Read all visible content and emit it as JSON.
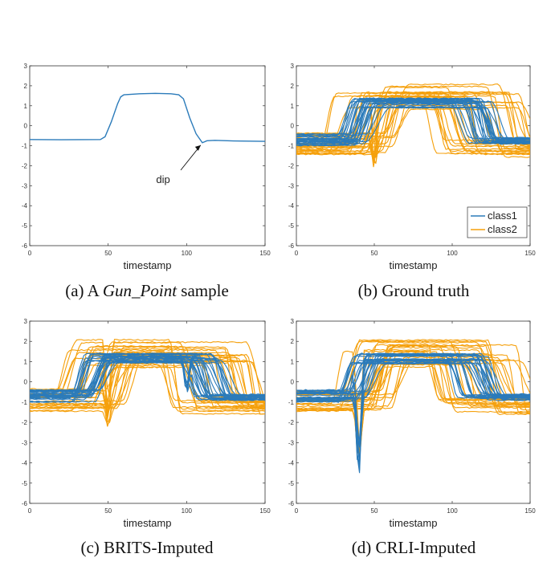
{
  "colors": {
    "class1": "#2b7bba",
    "class2": "#f5a00c",
    "axis": "#333333"
  },
  "chart_data": [
    {
      "type": "line",
      "xlabel": "timestamp",
      "xlim": [
        0,
        150
      ],
      "ylim": [
        -6,
        3
      ],
      "xticks": [
        "0",
        "50",
        "100",
        "150"
      ],
      "yticks": [
        "3",
        "2",
        "1",
        "0",
        "-1",
        "-2",
        "-3",
        "-4",
        "-5",
        "-6"
      ],
      "caption_prefix": "(a)  A ",
      "caption_em": "Gun_Point",
      "caption_suffix": " sample",
      "annotation": {
        "text": "dip",
        "target": [
          110,
          -0.85
        ],
        "label_at": [
          85,
          -2.7
        ]
      },
      "series": [
        {
          "x": [
            0,
            20,
            45,
            48,
            52,
            56,
            58,
            60,
            70,
            80,
            90,
            95,
            98,
            102,
            106,
            110,
            113,
            118,
            130,
            150
          ],
          "y": [
            -0.69,
            -0.7,
            -0.69,
            -0.55,
            0.2,
            1.1,
            1.45,
            1.55,
            1.6,
            1.62,
            1.6,
            1.55,
            1.35,
            0.4,
            -0.4,
            -0.85,
            -0.75,
            -0.73,
            -0.76,
            -0.78
          ]
        }
      ]
    },
    {
      "type": "line",
      "xlabel": "timestamp",
      "xlim": [
        0,
        150
      ],
      "ylim": [
        -6,
        3
      ],
      "xticks": [
        "0",
        "50",
        "100",
        "150"
      ],
      "yticks": [
        "3",
        "2",
        "1",
        "0",
        "-1",
        "-2",
        "-3",
        "-4",
        "-5",
        "-6"
      ],
      "caption": "(b)  Ground truth",
      "legend": {
        "position": "lower-right",
        "entries": [
          "class1",
          "class2"
        ]
      },
      "series": [
        {
          "class": "class1",
          "base": -0.7,
          "rise": [
            25,
            45
          ],
          "fall": [
            95,
            125
          ],
          "plateau": [
            0.9,
            1.4
          ],
          "lowEnd": [
            -0.9,
            -0.6
          ],
          "dip": []
        },
        {
          "class": "class2",
          "base": -0.9,
          "rise": [
            15,
            62
          ],
          "fall": [
            80,
            145
          ],
          "plateau": [
            0.7,
            2.1
          ],
          "lowEnd": [
            -1.6,
            -0.7
          ],
          "dip": [
            {
              "x": 50,
              "depth": -2.4
            }
          ]
        }
      ]
    },
    {
      "type": "line",
      "xlabel": "timestamp",
      "xlim": [
        0,
        150
      ],
      "ylim": [
        -6,
        3
      ],
      "xticks": [
        "0",
        "50",
        "100",
        "150"
      ],
      "yticks": [
        "3",
        "2",
        "1",
        "0",
        "-1",
        "-2",
        "-3",
        "-4",
        "-5",
        "-6"
      ],
      "caption": "(c)  BRITS-Imputed",
      "series": [
        {
          "class": "class1",
          "base": -0.7,
          "rise": [
            25,
            45
          ],
          "fall": [
            95,
            125
          ],
          "plateau": [
            0.9,
            1.4
          ],
          "lowEnd": [
            -0.9,
            -0.6
          ],
          "dip": [
            {
              "x": 100,
              "depth": -0.9
            }
          ]
        },
        {
          "class": "class2",
          "base": -0.9,
          "rise": [
            15,
            62
          ],
          "fall": [
            80,
            145
          ],
          "plateau": [
            0.7,
            2.1
          ],
          "lowEnd": [
            -1.6,
            -0.7
          ],
          "dip": [
            {
              "x": 50,
              "depth": -2.5
            }
          ]
        }
      ]
    },
    {
      "type": "line",
      "xlabel": "timestamp",
      "xlim": [
        0,
        150
      ],
      "ylim": [
        -6,
        3
      ],
      "xticks": [
        "0",
        "50",
        "100",
        "150"
      ],
      "yticks": [
        "3",
        "2",
        "1",
        "0",
        "-1",
        "-2",
        "-3",
        "-4",
        "-5",
        "-6"
      ],
      "caption": "(d)  CRLI-Imputed",
      "series": [
        {
          "class": "class1",
          "base": -0.7,
          "rise": [
            25,
            45
          ],
          "fall": [
            95,
            125
          ],
          "plateau": [
            0.9,
            1.4
          ],
          "lowEnd": [
            -0.9,
            -0.6
          ],
          "dip": [
            {
              "x": 40,
              "depth": -5.4
            }
          ]
        },
        {
          "class": "class2",
          "base": -0.9,
          "rise": [
            15,
            62
          ],
          "fall": [
            80,
            145
          ],
          "plateau": [
            0.7,
            2.1
          ],
          "lowEnd": [
            -1.6,
            -0.7
          ],
          "dip": [
            {
              "x": 40,
              "depth": -4.8
            }
          ]
        }
      ]
    }
  ]
}
